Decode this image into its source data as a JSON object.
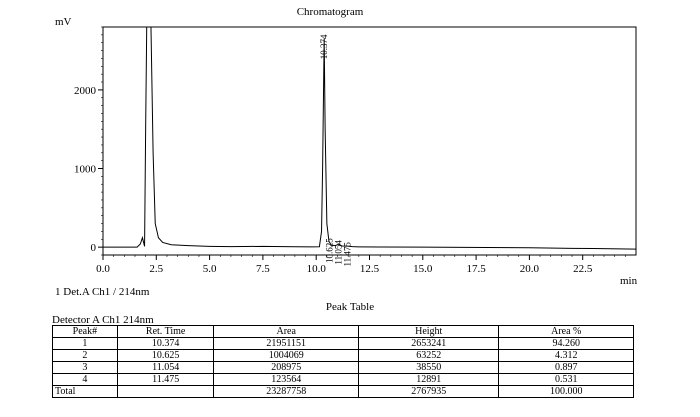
{
  "chart_data": {
    "type": "line",
    "title": "Chromatogram",
    "ylabel": "mV",
    "xlabel": "min",
    "xlim": [
      0,
      25
    ],
    "ylim": [
      -100,
      2800
    ],
    "x_ticks": [
      {
        "value": 0,
        "label": "0.0"
      },
      {
        "value": 2.5,
        "label": "2.5"
      },
      {
        "value": 5,
        "label": "5.0"
      },
      {
        "value": 7.5,
        "label": "7.5"
      },
      {
        "value": 10,
        "label": "10.0"
      },
      {
        "value": 12.5,
        "label": "12.5"
      },
      {
        "value": 15,
        "label": "15.0"
      },
      {
        "value": 17.5,
        "label": "17.5"
      },
      {
        "value": 20,
        "label": "20.0"
      },
      {
        "value": 22.5,
        "label": "22.5"
      }
    ],
    "y_ticks": [
      {
        "value": 0,
        "label": "0"
      },
      {
        "value": 1000,
        "label": "1000"
      },
      {
        "value": 2000,
        "label": "2000"
      }
    ],
    "grid": false,
    "series": [
      {
        "color": "#000000",
        "points": [
          [
            0,
            0
          ],
          [
            1.6,
            0
          ],
          [
            1.75,
            40
          ],
          [
            1.85,
            120
          ],
          [
            1.95,
            10
          ],
          [
            2.0,
            1500
          ],
          [
            2.05,
            2800
          ],
          [
            2.2,
            2800
          ],
          [
            2.25,
            2800
          ],
          [
            2.35,
            1200
          ],
          [
            2.45,
            300
          ],
          [
            2.6,
            120
          ],
          [
            2.8,
            60
          ],
          [
            3.2,
            30
          ],
          [
            4.0,
            20
          ],
          [
            5.0,
            10
          ],
          [
            6.0,
            6
          ],
          [
            7.5,
            10
          ],
          [
            9.0,
            5
          ],
          [
            9.8,
            3
          ],
          [
            10.15,
            5
          ],
          [
            10.25,
            200
          ],
          [
            10.3,
            1000
          ],
          [
            10.374,
            2653
          ],
          [
            10.42,
            1500
          ],
          [
            10.5,
            300
          ],
          [
            10.6,
            70
          ],
          [
            10.625,
            63
          ],
          [
            10.7,
            25
          ],
          [
            10.9,
            20
          ],
          [
            11.054,
            38
          ],
          [
            11.2,
            15
          ],
          [
            11.475,
            13
          ],
          [
            11.7,
            6
          ],
          [
            12.0,
            4
          ],
          [
            13.0,
            2
          ],
          [
            15.0,
            0
          ],
          [
            18.0,
            -4
          ],
          [
            20.0,
            -8
          ],
          [
            22.0,
            -15
          ],
          [
            23.0,
            -18
          ],
          [
            25.0,
            -25
          ]
        ]
      }
    ],
    "peak_labels": [
      {
        "x": 10.374,
        "y": 2653,
        "label": "10.374"
      },
      {
        "x": 10.625,
        "y": 63,
        "label": "10.625"
      },
      {
        "x": 11.054,
        "y": 38,
        "label": "11.054"
      },
      {
        "x": 11.475,
        "y": 13,
        "label": "11.475"
      }
    ]
  },
  "detector_label": "1 Det.A Ch1 / 214nm",
  "peak_table": {
    "title": "Peak Table",
    "detector": "Detector A Ch1 214nm",
    "headers": [
      "Peak#",
      "Ret. Time",
      "Area",
      "Height",
      "Area %"
    ],
    "rows": [
      {
        "peak": "1",
        "ret_time": "10.374",
        "area": "21951151",
        "height": "2653241",
        "area_pct": "94.260"
      },
      {
        "peak": "2",
        "ret_time": "10.625",
        "area": "1004069",
        "height": "63252",
        "area_pct": "4.312"
      },
      {
        "peak": "3",
        "ret_time": "11.054",
        "area": "208975",
        "height": "38550",
        "area_pct": "0.897"
      },
      {
        "peak": "4",
        "ret_time": "11.475",
        "area": "123564",
        "height": "12891",
        "area_pct": "0.531"
      }
    ],
    "total": {
      "label": "Total",
      "ret_time": "",
      "area": "23287758",
      "height": "2767935",
      "area_pct": "100.000"
    }
  }
}
